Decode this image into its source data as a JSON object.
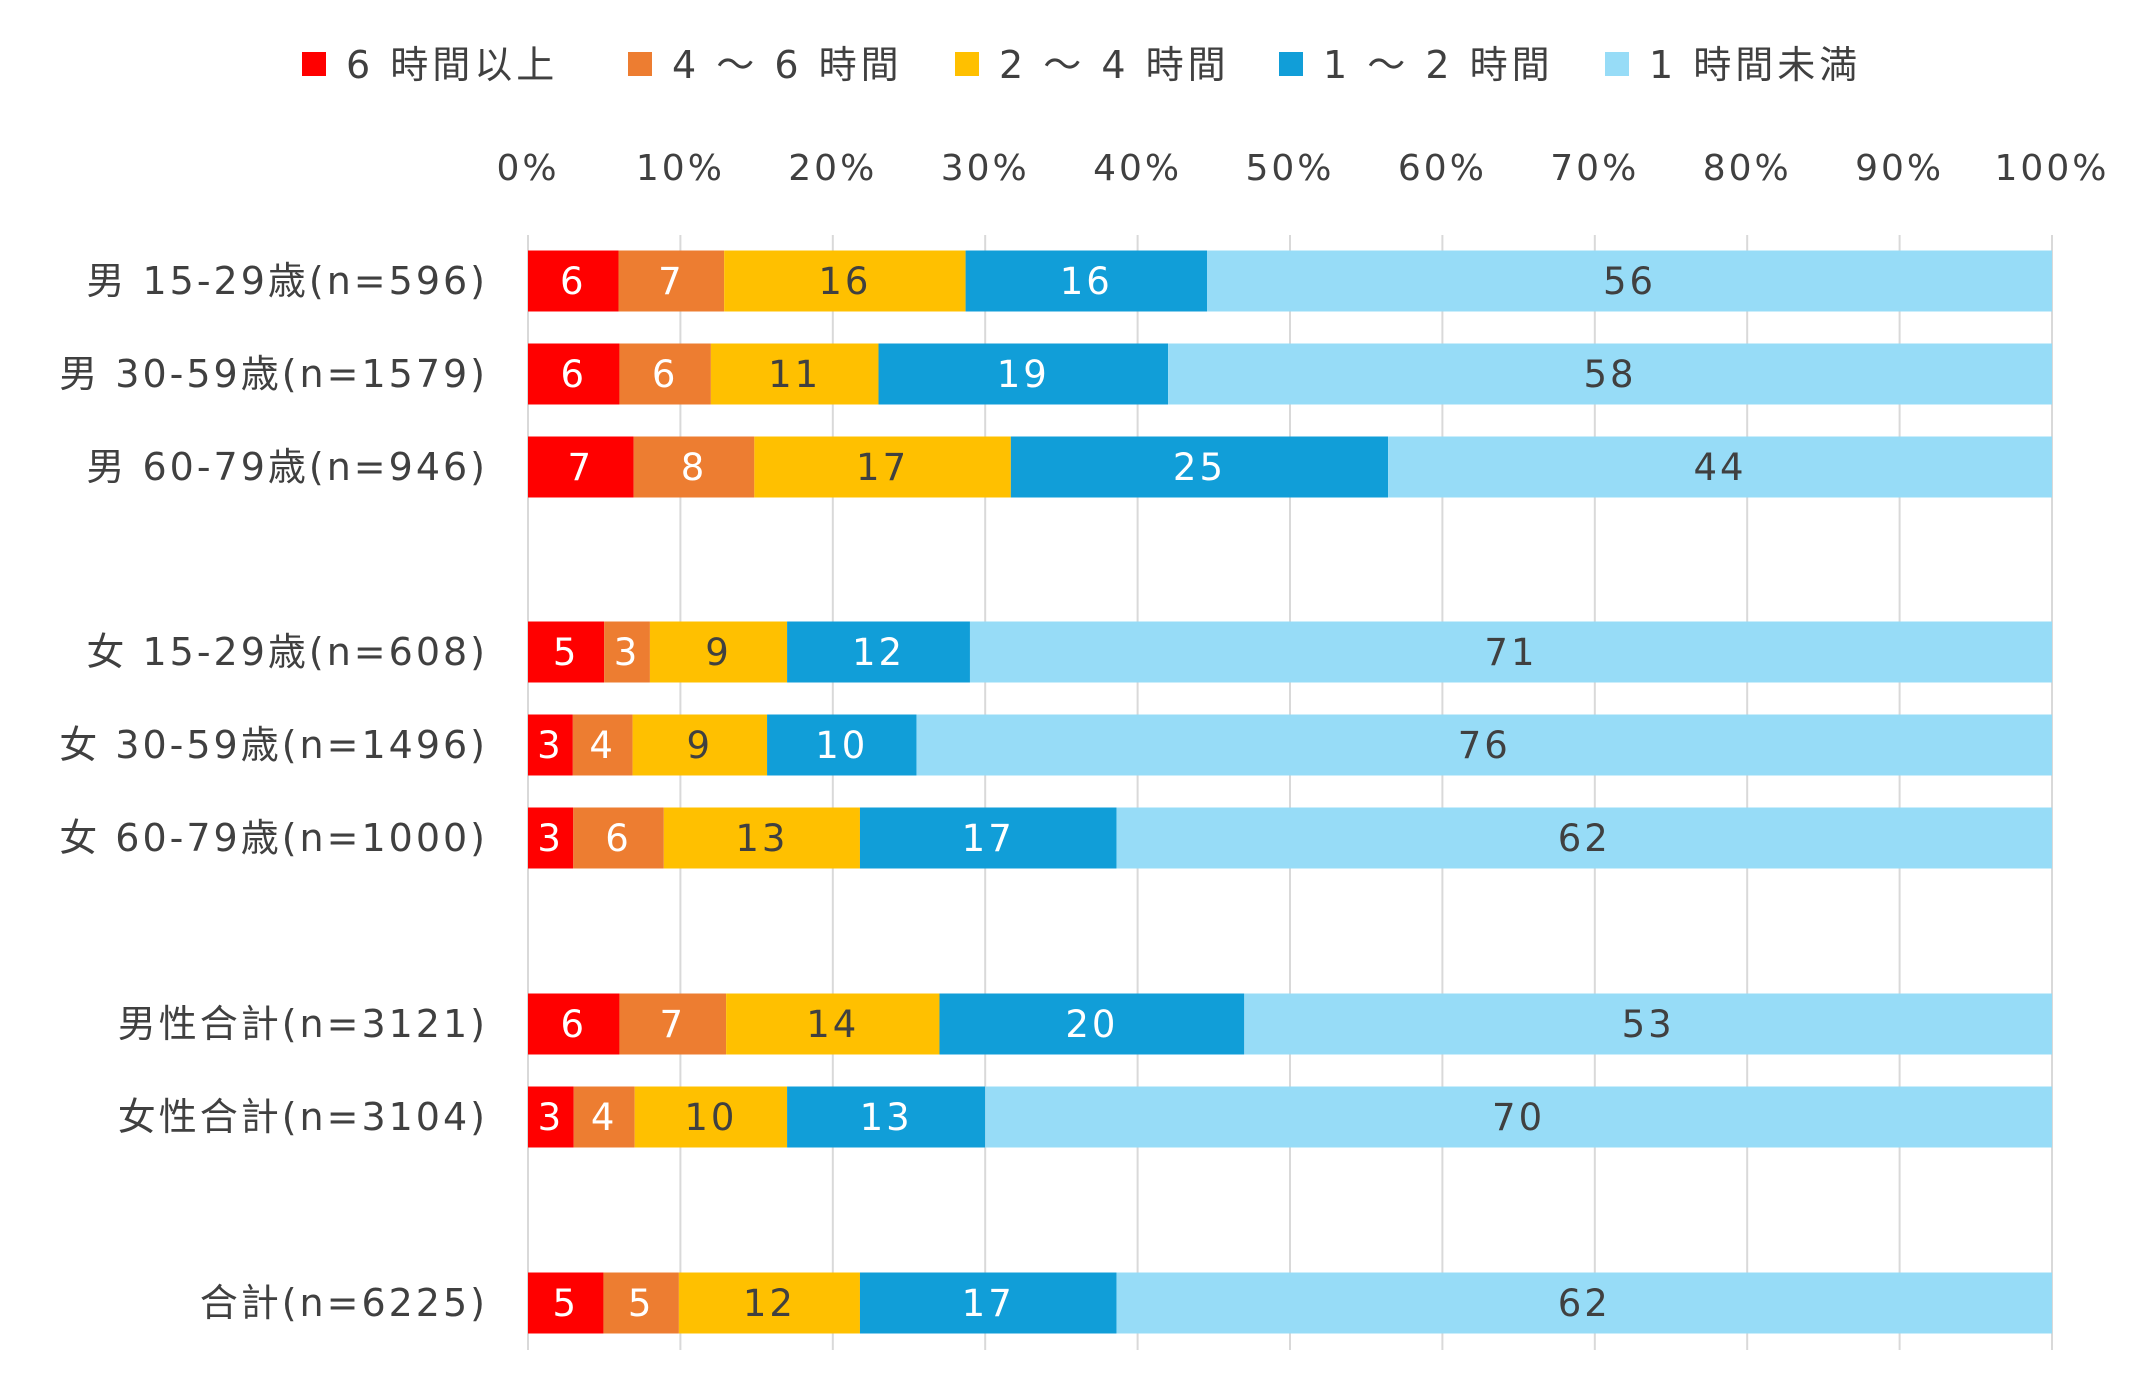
{
  "chart_data": {
    "type": "bar",
    "orientation": "horizontal",
    "stacked": "100%",
    "categories": [
      "男 15-29歳(n=596)",
      "男 30-59歳(n=1579)",
      "男 60-79歳(n=946)",
      "女 15-29歳(n=608)",
      "女 30-59歳(n=1496)",
      "女 60-79歳(n=1000)",
      "男性合計(n=3121)",
      "女性合計(n=3104)",
      "合計(n=6225)"
    ],
    "series": [
      {
        "name": "6 時間以上",
        "color": "#ff0000",
        "values": [
          6,
          6,
          7,
          5,
          3,
          3,
          6,
          3,
          5
        ]
      },
      {
        "name": "4 ～ 6 時間",
        "color": "#ed7d31",
        "values": [
          7,
          6,
          8,
          3,
          4,
          6,
          7,
          4,
          5
        ]
      },
      {
        "name": "2 ～ 4 時間",
        "color": "#ffc000",
        "values": [
          16,
          11,
          17,
          9,
          9,
          13,
          14,
          10,
          12
        ]
      },
      {
        "name": "1 ～ 2 時間",
        "color": "#119ed8",
        "values": [
          16,
          19,
          25,
          12,
          10,
          17,
          20,
          13,
          17
        ]
      },
      {
        "name": "1 時間未満",
        "color": "#97dcf7",
        "values": [
          56,
          58,
          44,
          71,
          76,
          62,
          53,
          70,
          62
        ]
      }
    ],
    "xticks": [
      "0%",
      "10%",
      "20%",
      "30%",
      "40%",
      "50%",
      "60%",
      "70%",
      "80%",
      "90%",
      "100%"
    ],
    "xlim": [
      0,
      100
    ],
    "grid": true,
    "legend_position": "top",
    "data_labels": true,
    "title": "",
    "xlabel": "",
    "ylabel": ""
  }
}
